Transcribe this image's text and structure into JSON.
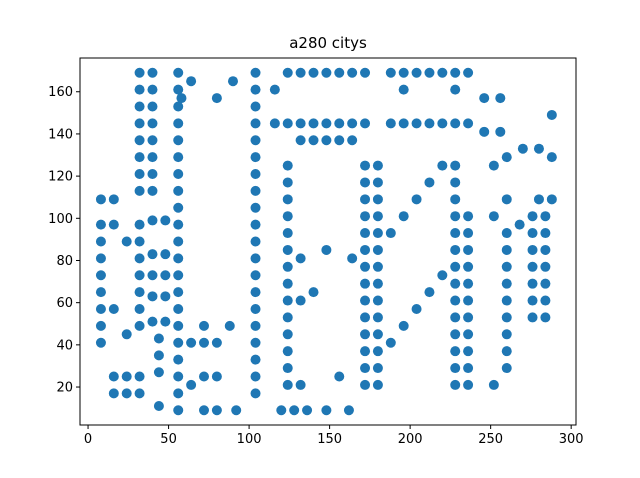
{
  "chart_data": {
    "type": "scatter",
    "title": "a280 citys",
    "xlabel": "",
    "ylabel": "",
    "xlim": [
      -5,
      303
    ],
    "ylim": [
      2,
      176
    ],
    "xticks": [
      0,
      50,
      100,
      150,
      200,
      250,
      300
    ],
    "yticks": [
      20,
      40,
      60,
      80,
      100,
      120,
      140,
      160
    ],
    "grid": false,
    "marker_color": "#1f77b4",
    "points": [
      [
        8,
        109
      ],
      [
        8,
        97
      ],
      [
        8,
        89
      ],
      [
        8,
        81
      ],
      [
        8,
        73
      ],
      [
        8,
        65
      ],
      [
        8,
        57
      ],
      [
        8,
        49
      ],
      [
        8,
        41
      ],
      [
        16,
        109
      ],
      [
        16,
        97
      ],
      [
        16,
        57
      ],
      [
        16,
        25
      ],
      [
        16,
        17
      ],
      [
        24,
        89
      ],
      [
        24,
        45
      ],
      [
        24,
        25
      ],
      [
        24,
        17
      ],
      [
        32,
        169
      ],
      [
        32,
        161
      ],
      [
        32,
        153
      ],
      [
        32,
        145
      ],
      [
        32,
        137
      ],
      [
        32,
        129
      ],
      [
        32,
        121
      ],
      [
        32,
        113
      ],
      [
        32,
        97
      ],
      [
        32,
        89
      ],
      [
        32,
        81
      ],
      [
        32,
        73
      ],
      [
        32,
        65
      ],
      [
        32,
        57
      ],
      [
        32,
        49
      ],
      [
        32,
        25
      ],
      [
        32,
        17
      ],
      [
        40,
        169
      ],
      [
        40,
        161
      ],
      [
        40,
        153
      ],
      [
        40,
        145
      ],
      [
        40,
        137
      ],
      [
        40,
        129
      ],
      [
        40,
        121
      ],
      [
        40,
        113
      ],
      [
        40,
        99
      ],
      [
        40,
        83
      ],
      [
        40,
        73
      ],
      [
        40,
        63
      ],
      [
        40,
        51
      ],
      [
        44,
        43
      ],
      [
        44,
        35
      ],
      [
        44,
        27
      ],
      [
        44,
        11
      ],
      [
        48,
        99
      ],
      [
        48,
        83
      ],
      [
        48,
        73
      ],
      [
        48,
        63
      ],
      [
        48,
        51
      ],
      [
        56,
        169
      ],
      [
        56,
        161
      ],
      [
        56,
        153
      ],
      [
        56,
        145
      ],
      [
        56,
        137
      ],
      [
        56,
        129
      ],
      [
        56,
        121
      ],
      [
        56,
        113
      ],
      [
        56,
        105
      ],
      [
        56,
        97
      ],
      [
        56,
        89
      ],
      [
        56,
        81
      ],
      [
        56,
        73
      ],
      [
        56,
        65
      ],
      [
        56,
        57
      ],
      [
        56,
        49
      ],
      [
        56,
        41
      ],
      [
        56,
        33
      ],
      [
        56,
        25
      ],
      [
        56,
        17
      ],
      [
        56,
        9
      ],
      [
        58,
        157
      ],
      [
        64,
        165
      ],
      [
        64,
        41
      ],
      [
        64,
        21
      ],
      [
        72,
        49
      ],
      [
        72,
        41
      ],
      [
        72,
        25
      ],
      [
        72,
        9
      ],
      [
        80,
        157
      ],
      [
        80,
        41
      ],
      [
        80,
        25
      ],
      [
        80,
        9
      ],
      [
        88,
        49
      ],
      [
        90,
        165
      ],
      [
        92,
        9
      ],
      [
        104,
        169
      ],
      [
        104,
        161
      ],
      [
        104,
        153
      ],
      [
        104,
        145
      ],
      [
        104,
        137
      ],
      [
        104,
        129
      ],
      [
        104,
        121
      ],
      [
        104,
        113
      ],
      [
        104,
        105
      ],
      [
        104,
        97
      ],
      [
        104,
        89
      ],
      [
        104,
        81
      ],
      [
        104,
        73
      ],
      [
        104,
        65
      ],
      [
        104,
        57
      ],
      [
        104,
        49
      ],
      [
        104,
        41
      ],
      [
        104,
        33
      ],
      [
        104,
        25
      ],
      [
        104,
        17
      ],
      [
        116,
        161
      ],
      [
        116,
        145
      ],
      [
        120,
        9
      ],
      [
        124,
        169
      ],
      [
        124,
        145
      ],
      [
        124,
        125
      ],
      [
        124,
        117
      ],
      [
        124,
        109
      ],
      [
        124,
        101
      ],
      [
        124,
        93
      ],
      [
        124,
        85
      ],
      [
        124,
        77
      ],
      [
        124,
        69
      ],
      [
        124,
        61
      ],
      [
        124,
        53
      ],
      [
        124,
        45
      ],
      [
        124,
        37
      ],
      [
        124,
        29
      ],
      [
        124,
        21
      ],
      [
        128,
        9
      ],
      [
        132,
        169
      ],
      [
        132,
        145
      ],
      [
        132,
        137
      ],
      [
        132,
        81
      ],
      [
        132,
        61
      ],
      [
        132,
        21
      ],
      [
        136,
        9
      ],
      [
        140,
        169
      ],
      [
        140,
        145
      ],
      [
        140,
        137
      ],
      [
        140,
        65
      ],
      [
        148,
        169
      ],
      [
        148,
        145
      ],
      [
        148,
        137
      ],
      [
        148,
        85
      ],
      [
        148,
        9
      ],
      [
        156,
        169
      ],
      [
        156,
        145
      ],
      [
        156,
        137
      ],
      [
        156,
        25
      ],
      [
        162,
        9
      ],
      [
        164,
        169
      ],
      [
        164,
        145
      ],
      [
        164,
        137
      ],
      [
        164,
        81
      ],
      [
        172,
        169
      ],
      [
        172,
        145
      ],
      [
        172,
        125
      ],
      [
        172,
        117
      ],
      [
        172,
        109
      ],
      [
        172,
        101
      ],
      [
        172,
        93
      ],
      [
        172,
        85
      ],
      [
        172,
        77
      ],
      [
        172,
        69
      ],
      [
        172,
        61
      ],
      [
        172,
        53
      ],
      [
        172,
        45
      ],
      [
        172,
        37
      ],
      [
        172,
        29
      ],
      [
        172,
        21
      ],
      [
        180,
        125
      ],
      [
        180,
        117
      ],
      [
        180,
        109
      ],
      [
        180,
        101
      ],
      [
        180,
        93
      ],
      [
        180,
        85
      ],
      [
        180,
        77
      ],
      [
        180,
        69
      ],
      [
        180,
        61
      ],
      [
        180,
        53
      ],
      [
        180,
        45
      ],
      [
        180,
        37
      ],
      [
        180,
        29
      ],
      [
        180,
        21
      ],
      [
        188,
        169
      ],
      [
        188,
        145
      ],
      [
        188,
        93
      ],
      [
        188,
        41
      ],
      [
        196,
        169
      ],
      [
        196,
        161
      ],
      [
        196,
        145
      ],
      [
        196,
        101
      ],
      [
        196,
        49
      ],
      [
        204,
        169
      ],
      [
        204,
        145
      ],
      [
        204,
        109
      ],
      [
        204,
        57
      ],
      [
        212,
        169
      ],
      [
        212,
        145
      ],
      [
        212,
        117
      ],
      [
        212,
        65
      ],
      [
        220,
        169
      ],
      [
        220,
        145
      ],
      [
        220,
        125
      ],
      [
        220,
        73
      ],
      [
        228,
        169
      ],
      [
        228,
        161
      ],
      [
        228,
        145
      ],
      [
        228,
        125
      ],
      [
        228,
        117
      ],
      [
        228,
        109
      ],
      [
        228,
        101
      ],
      [
        228,
        93
      ],
      [
        228,
        85
      ],
      [
        228,
        77
      ],
      [
        228,
        69
      ],
      [
        228,
        61
      ],
      [
        228,
        53
      ],
      [
        228,
        45
      ],
      [
        228,
        37
      ],
      [
        228,
        29
      ],
      [
        228,
        21
      ],
      [
        236,
        169
      ],
      [
        236,
        145
      ],
      [
        236,
        101
      ],
      [
        236,
        93
      ],
      [
        236,
        85
      ],
      [
        236,
        77
      ],
      [
        236,
        69
      ],
      [
        236,
        61
      ],
      [
        236,
        53
      ],
      [
        236,
        45
      ],
      [
        236,
        37
      ],
      [
        236,
        29
      ],
      [
        236,
        21
      ],
      [
        246,
        157
      ],
      [
        246,
        141
      ],
      [
        252,
        125
      ],
      [
        252,
        101
      ],
      [
        252,
        21
      ],
      [
        256,
        157
      ],
      [
        256,
        141
      ],
      [
        260,
        129
      ],
      [
        260,
        109
      ],
      [
        260,
        93
      ],
      [
        260,
        85
      ],
      [
        260,
        77
      ],
      [
        260,
        69
      ],
      [
        260,
        61
      ],
      [
        260,
        53
      ],
      [
        260,
        45
      ],
      [
        260,
        37
      ],
      [
        260,
        29
      ],
      [
        268,
        97
      ],
      [
        270,
        133
      ],
      [
        276,
        101
      ],
      [
        276,
        93
      ],
      [
        276,
        85
      ],
      [
        276,
        77
      ],
      [
        276,
        69
      ],
      [
        276,
        61
      ],
      [
        276,
        53
      ],
      [
        280,
        133
      ],
      [
        280,
        109
      ],
      [
        284,
        101
      ],
      [
        284,
        93
      ],
      [
        284,
        85
      ],
      [
        284,
        77
      ],
      [
        284,
        69
      ],
      [
        284,
        61
      ],
      [
        284,
        53
      ],
      [
        288,
        149
      ],
      [
        288,
        129
      ],
      [
        288,
        109
      ]
    ]
  }
}
